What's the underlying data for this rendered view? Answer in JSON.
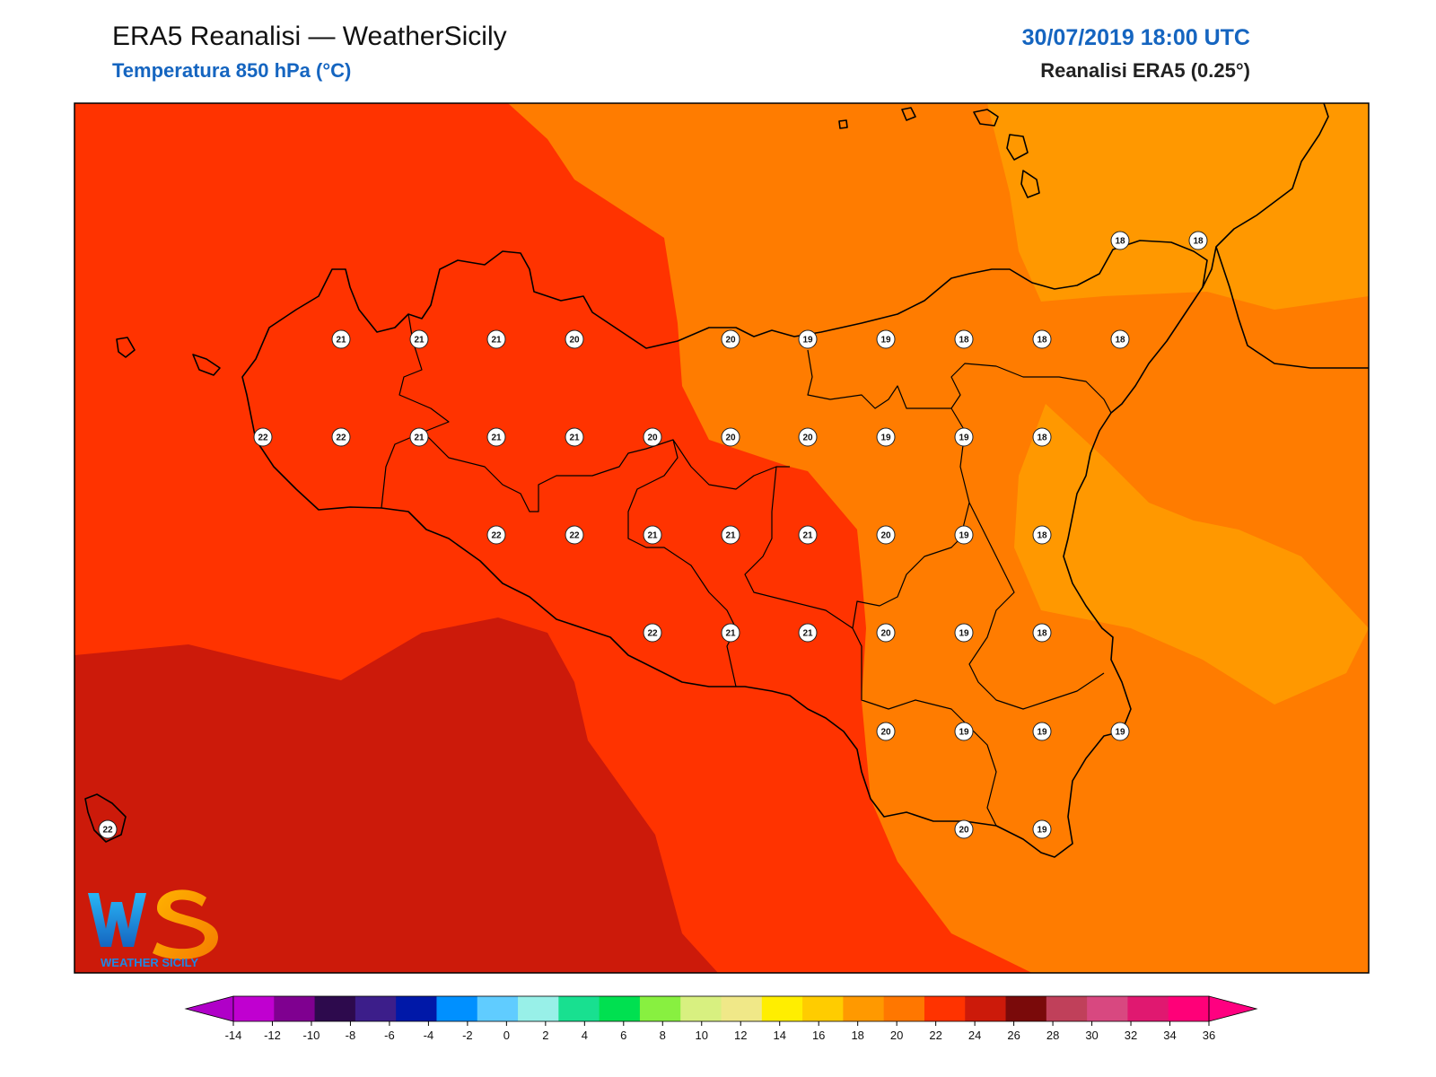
{
  "header": {
    "title": "ERA5 Reanalisi — WeatherSicily",
    "subtitle": "Temperatura 850 hPa (°C)",
    "datetime": "30/07/2019 18:00 UTC",
    "source": "Reanalisi ERA5 (0.25°)"
  },
  "logo": {
    "letters": "WS",
    "text": "WEATHER SICILY"
  },
  "colors": {
    "t16": "#ff9800",
    "t18": "#ff7c00",
    "t20": "#ff3300",
    "t22": "#cc1a0a",
    "coast": "#000000"
  },
  "stations": [
    {
      "value": "21"
    },
    {
      "value": "21"
    },
    {
      "value": "21"
    },
    {
      "value": "20"
    },
    {
      "value": "20"
    },
    {
      "value": "19"
    },
    {
      "value": "19"
    },
    {
      "value": "18"
    },
    {
      "value": "18"
    },
    {
      "value": "18"
    },
    {
      "value": "22"
    },
    {
      "value": "22"
    },
    {
      "value": "21"
    },
    {
      "value": "21"
    },
    {
      "value": "21"
    },
    {
      "value": "20"
    },
    {
      "value": "20"
    },
    {
      "value": "20"
    },
    {
      "value": "19"
    },
    {
      "value": "19"
    },
    {
      "value": "18"
    },
    {
      "value": "22"
    },
    {
      "value": "22"
    },
    {
      "value": "21"
    },
    {
      "value": "21"
    },
    {
      "value": "21"
    },
    {
      "value": "20"
    },
    {
      "value": "19"
    },
    {
      "value": "18"
    },
    {
      "value": "22"
    },
    {
      "value": "21"
    },
    {
      "value": "21"
    },
    {
      "value": "20"
    },
    {
      "value": "19"
    },
    {
      "value": "18"
    },
    {
      "value": "20"
    },
    {
      "value": "19"
    },
    {
      "value": "19"
    },
    {
      "value": "19"
    },
    {
      "value": "20"
    },
    {
      "value": "19"
    },
    {
      "value": "18"
    },
    {
      "value": "18"
    },
    {
      "value": "22"
    }
  ],
  "colorbar": {
    "ticks": [
      "-14",
      "-12",
      "-10",
      "-8",
      "-6",
      "-4",
      "-2",
      "0",
      "2",
      "4",
      "6",
      "8",
      "10",
      "12",
      "14",
      "16",
      "18",
      "20",
      "22",
      "24",
      "26",
      "28",
      "30",
      "32",
      "34",
      "36"
    ],
    "colors": [
      "#c000d0",
      "#7f0090",
      "#2d0a4d",
      "#3c1e8a",
      "#0018a8",
      "#0090ff",
      "#60ccff",
      "#98f0e8",
      "#18e090",
      "#00e050",
      "#88f040",
      "#d8f080",
      "#f0e888",
      "#ffee00",
      "#ffcc00",
      "#ff9900",
      "#ff7700",
      "#ff3300",
      "#cc1a0a",
      "#7a0a0a",
      "#c0405a",
      "#d84880",
      "#e01870",
      "#ff0078"
    ],
    "under_color": "#b000c8",
    "over_color": "#ff0080"
  }
}
